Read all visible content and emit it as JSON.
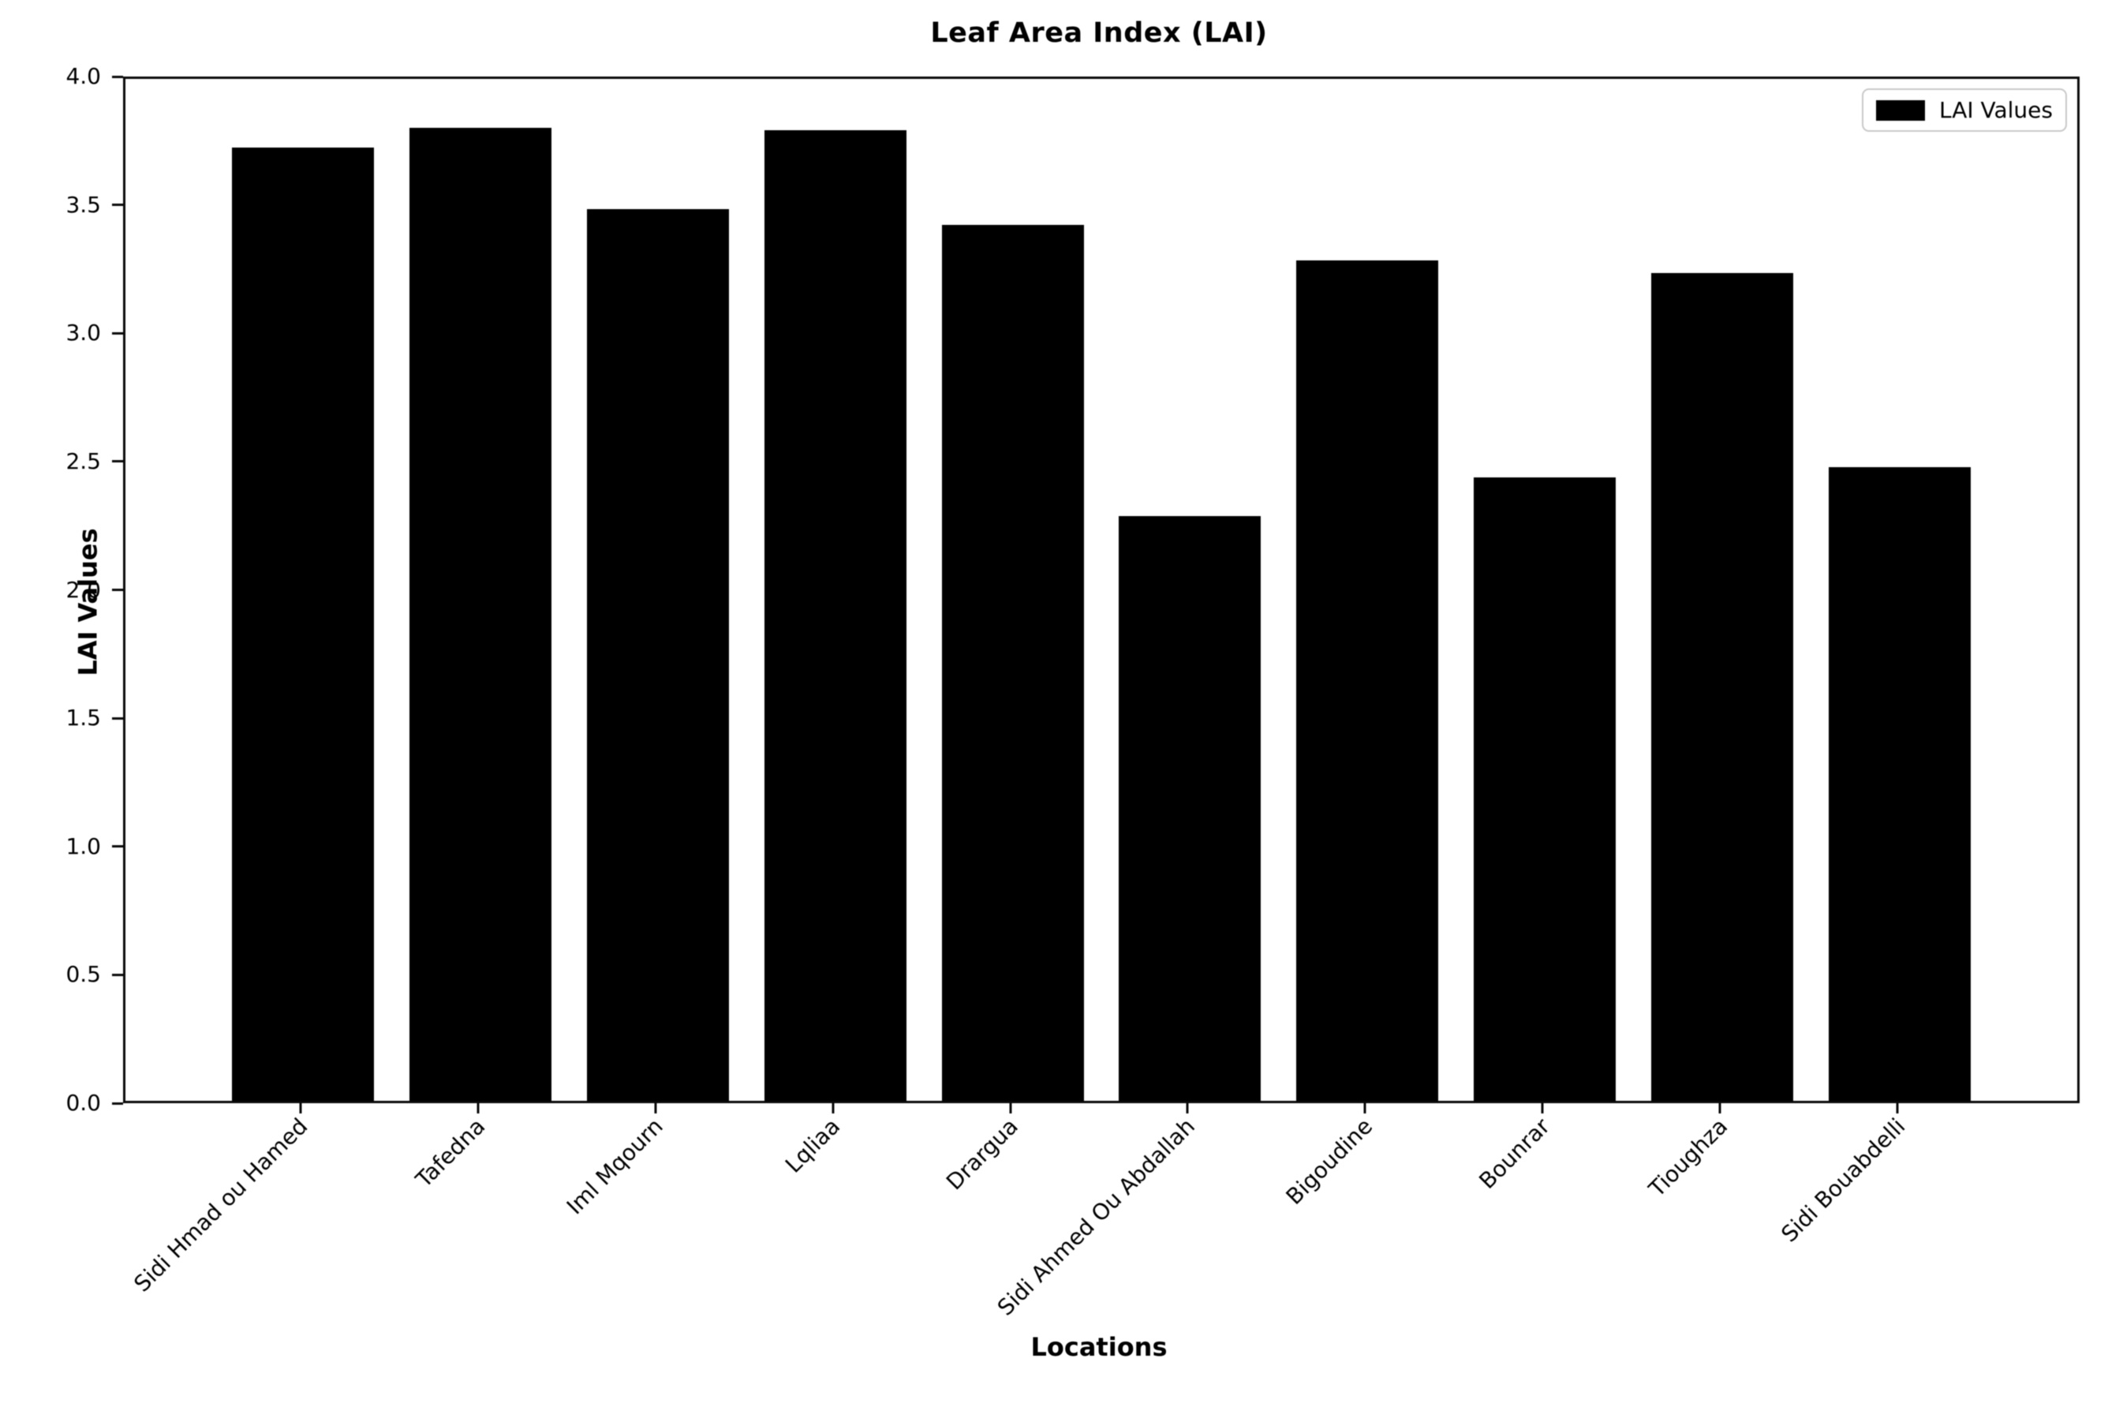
{
  "chart_data": {
    "type": "bar",
    "title": "Leaf Area Index (LAI)",
    "xlabel": "Locations",
    "ylabel": "LAI Values",
    "legend": {
      "label": "LAI Values",
      "position": "upper right",
      "swatch_color": "#000000"
    },
    "categories": [
      "Sidi Hmad ou Hamed",
      "Tafedna",
      "Iml Mqourn",
      "Lqliaa",
      "Drargua",
      "Sidi Ahmed Ou Abdallah",
      "Bigoudine",
      "Bounrar",
      "Tioughza",
      "Sidi Bouabdelli"
    ],
    "values": [
      3.73,
      3.81,
      3.49,
      3.8,
      3.43,
      2.29,
      3.29,
      2.44,
      3.24,
      2.48
    ],
    "ylim": [
      0.0,
      4.0
    ],
    "yticks": [
      "0.0",
      "0.5",
      "1.0",
      "1.5",
      "2.0",
      "2.5",
      "3.0",
      "3.5",
      "4.0"
    ],
    "xtick_rotation": 45,
    "bar_color": "#000000",
    "grid": false
  }
}
